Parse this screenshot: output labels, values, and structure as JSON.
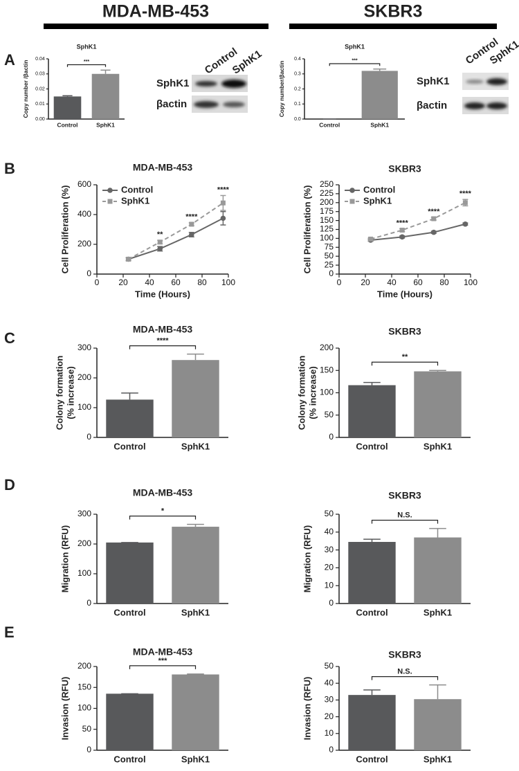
{
  "headers": [
    "MDA-MB-453",
    "SKBR3"
  ],
  "panel_letters": [
    "A",
    "B",
    "C",
    "D",
    "E"
  ],
  "blots": [
    {
      "lanes": [
        "Control",
        "SphK1"
      ],
      "rows": [
        "SphK1",
        "βactin"
      ]
    },
    {
      "lanes": [
        "Control",
        "SphK1"
      ],
      "rows": [
        "SphK1",
        "βactin"
      ]
    }
  ],
  "chart_data": [
    {
      "type": "bar",
      "title": "SphK1",
      "ylabel": [
        "Copy number /βactin"
      ],
      "categories": [
        "Control",
        "SphK1"
      ],
      "values": [
        0.015,
        0.03
      ],
      "errors": [
        0.0005,
        0.0025
      ],
      "colors": [
        "#58595b",
        "#8c8c8c"
      ],
      "ylim": [
        0,
        0.04
      ],
      "yticks": [
        {
          "value": 0,
          "label": "0.00"
        },
        0.01,
        0.02,
        0.03,
        0.04
      ],
      "significance": "***"
    },
    {
      "type": "bar",
      "title": "SphK1",
      "ylabel": [
        "Copy number/βactin"
      ],
      "categories": [
        "Control",
        "SphK1"
      ],
      "values": [
        0,
        0.32
      ],
      "errors": [
        0,
        0.012
      ],
      "colors": [
        "#58595b",
        "#8c8c8c"
      ],
      "ylim": [
        0,
        0.4
      ],
      "yticks": [
        {
          "value": 0,
          "label": "0.0"
        },
        0.1,
        0.2,
        0.3,
        0.4
      ],
      "significance": "***"
    },
    {
      "type": "line",
      "title": "MDA-MB-453",
      "xlabel": "Time (Hours)",
      "ylabel": [
        "Cell Proliferation (%)"
      ],
      "x": [
        24,
        48,
        72,
        96
      ],
      "series": [
        {
          "name": "Control",
          "color": "#666666",
          "marker": "circle",
          "dashed": false,
          "values": [
            100,
            170,
            265,
            375
          ],
          "errors": [
            10,
            15,
            15,
            45
          ]
        },
        {
          "name": "SphK1",
          "color": "#999999",
          "marker": "square",
          "dashed": true,
          "values": [
            100,
            215,
            335,
            478
          ],
          "errors": [
            10,
            12,
            10,
            50
          ]
        }
      ],
      "xlim": [
        0,
        100
      ],
      "xticks": [
        0,
        20,
        40,
        60,
        80,
        100
      ],
      "ylim": [
        0,
        600
      ],
      "yticks": [
        0,
        200,
        400,
        600
      ],
      "legend": "upper left",
      "annotations": [
        {
          "x": 48,
          "text": "**"
        },
        {
          "x": 72,
          "text": "****"
        },
        {
          "x": 96,
          "text": "****"
        }
      ]
    },
    {
      "type": "line",
      "title": "SKBR3",
      "xlabel": "Time (Hours)",
      "ylabel": [
        "Cell Proliferation (%)"
      ],
      "x": [
        24,
        48,
        72,
        96
      ],
      "series": [
        {
          "name": "Control",
          "color": "#666666",
          "marker": "circle",
          "dashed": false,
          "values": [
            95,
            104,
            117,
            140
          ],
          "errors": [
            3,
            3,
            3,
            3
          ]
        },
        {
          "name": "SphK1",
          "color": "#999999",
          "marker": "square",
          "dashed": true,
          "values": [
            98,
            123,
            155,
            200
          ],
          "errors": [
            3,
            4,
            4,
            9
          ]
        }
      ],
      "xlim": [
        0,
        100
      ],
      "xticks": [
        0,
        20,
        40,
        60,
        80,
        100
      ],
      "ylim": [
        0,
        250
      ],
      "yticks": [
        0,
        25,
        50,
        75,
        100,
        125,
        150,
        175,
        200,
        225,
        250
      ],
      "legend": "upper left",
      "annotations": [
        {
          "x": 48,
          "text": "****"
        },
        {
          "x": 72,
          "text": "****"
        },
        {
          "x": 96,
          "text": "****"
        }
      ]
    },
    {
      "type": "bar",
      "title": "MDA-MB-453",
      "ylabel": [
        "Colony formation",
        "(% increase)"
      ],
      "categories": [
        "Control",
        "SphK1"
      ],
      "values": [
        127,
        260
      ],
      "errors": [
        22,
        20
      ],
      "colors": [
        "#58595b",
        "#8c8c8c"
      ],
      "ylim": [
        0,
        300
      ],
      "yticks": [
        0,
        100,
        200,
        300
      ],
      "significance": "****"
    },
    {
      "type": "bar",
      "title": "SKBR3",
      "ylabel": [
        "Colony formation",
        "(% increase)"
      ],
      "categories": [
        "Control",
        "SphK1"
      ],
      "values": [
        117,
        148
      ],
      "errors": [
        6,
        2
      ],
      "colors": [
        "#58595b",
        "#8c8c8c"
      ],
      "ylim": [
        0,
        200
      ],
      "yticks": [
        0,
        50,
        100,
        150,
        200
      ],
      "significance": "**"
    },
    {
      "type": "bar",
      "title": "MDA-MB-453",
      "ylabel": [
        "Migration (RFU)"
      ],
      "categories": [
        "Control",
        "SphK1"
      ],
      "values": [
        205,
        258
      ],
      "errors": [
        0,
        8
      ],
      "colors": [
        "#58595b",
        "#8c8c8c"
      ],
      "ylim": [
        0,
        300
      ],
      "yticks": [
        0,
        100,
        200,
        300
      ],
      "significance": "*"
    },
    {
      "type": "bar",
      "title": "SKBR3",
      "ylabel": [
        "Migration (RFU)"
      ],
      "categories": [
        "Control",
        "SphK1"
      ],
      "values": [
        34.5,
        37
      ],
      "errors": [
        1.5,
        5
      ],
      "colors": [
        "#58595b",
        "#8c8c8c"
      ],
      "ylim": [
        0,
        50
      ],
      "yticks": [
        0,
        10,
        20,
        30,
        40,
        50
      ],
      "significance": "N.S."
    },
    {
      "type": "bar",
      "title": "MDA-MB-453",
      "ylabel": [
        "Invasion (RFU)"
      ],
      "categories": [
        "Control",
        "SphK1"
      ],
      "values": [
        135,
        181
      ],
      "errors": [
        0,
        1
      ],
      "colors": [
        "#58595b",
        "#8c8c8c"
      ],
      "ylim": [
        0,
        200
      ],
      "yticks": [
        0,
        50,
        100,
        150,
        200
      ],
      "significance": "***"
    },
    {
      "type": "bar",
      "title": "SKBR3",
      "ylabel": [
        "Invasion (RFU)"
      ],
      "categories": [
        "Control",
        "SphK1"
      ],
      "values": [
        33,
        30.5
      ],
      "errors": [
        3,
        8.5
      ],
      "colors": [
        "#58595b",
        "#8c8c8c"
      ],
      "ylim": [
        0,
        50
      ],
      "yticks": [
        0,
        10,
        20,
        30,
        40,
        50
      ],
      "significance": "N.S."
    }
  ]
}
